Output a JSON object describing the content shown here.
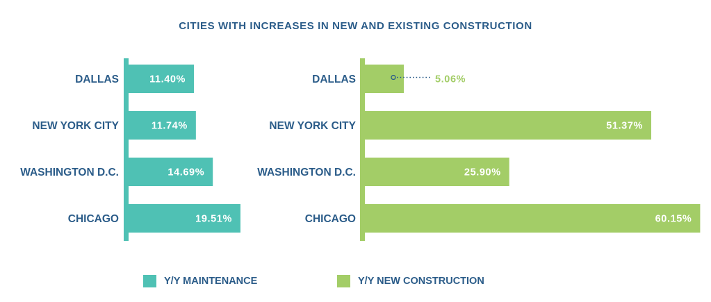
{
  "chart_data": [
    {
      "type": "bar",
      "orientation": "horizontal",
      "title": "CITIES WITH INCREASES IN NEW AND EXISTING CONSTRUCTION",
      "series_name": "Y/Y MAINTENANCE",
      "categories": [
        "DALLAS",
        "NEW YORK CITY",
        "WASHINGTON D.C.",
        "CHICAGO"
      ],
      "values": [
        11.4,
        11.74,
        14.69,
        19.51
      ],
      "value_labels": [
        "11.40%",
        "11.74%",
        "14.69%",
        "19.51%"
      ],
      "color": "#4FC1B4",
      "grid": false
    },
    {
      "type": "bar",
      "orientation": "horizontal",
      "series_name": "Y/Y NEW CONSTRUCTION",
      "categories": [
        "DALLAS",
        "NEW YORK CITY",
        "WASHINGTON D.C.",
        "CHICAGO"
      ],
      "values": [
        5.06,
        51.37,
        25.9,
        60.15
      ],
      "value_labels": [
        "5.06%",
        "51.37%",
        "25.90%",
        "60.15%"
      ],
      "color": "#A3CD67",
      "grid": false
    }
  ],
  "title": "CITIES WITH INCREASES IN NEW AND EXISTING CONSTRUCTION",
  "legend": {
    "placement": "bottom",
    "items": [
      {
        "label": "Y/Y MAINTENANCE",
        "color": "#4FC1B4"
      },
      {
        "label": "Y/Y NEW CONSTRUCTION",
        "color": "#A3CD67"
      }
    ]
  },
  "colors": {
    "text": "#2B5C89",
    "callout": "#2B5C89"
  }
}
